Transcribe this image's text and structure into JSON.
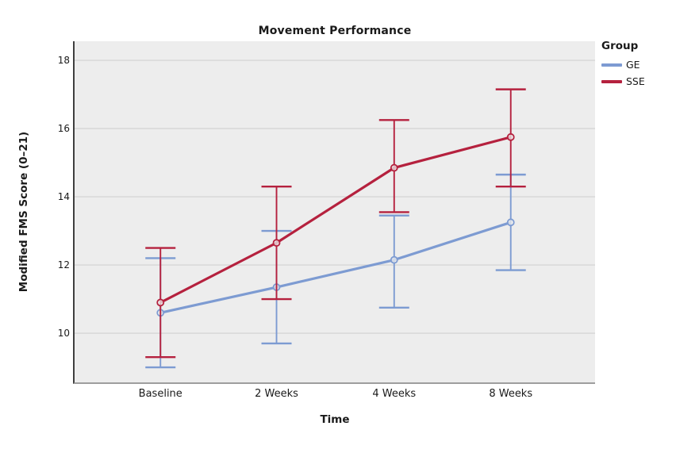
{
  "figure": {
    "background": "#ffffff",
    "plot_background": "#ededed",
    "gridline_color": "#d6d6d6",
    "text_color": "#1a1a1a"
  },
  "chart_data": {
    "type": "line",
    "title": "Movement Performance",
    "xlabel": "Time",
    "ylabel": "Modified FMS Score (0–21)",
    "categories": [
      "Baseline",
      "2 Weeks",
      "4 Weeks",
      "8 Weeks"
    ],
    "series": [
      {
        "name": "GE",
        "color": "#7d9bd2",
        "values": [
          10.6,
          11.35,
          12.15,
          13.25
        ],
        "error_low": [
          9.0,
          9.7,
          10.75,
          11.85
        ],
        "error_high": [
          12.2,
          13.0,
          13.45,
          14.65
        ]
      },
      {
        "name": "SSE",
        "color": "#b5213e",
        "values": [
          10.9,
          12.65,
          14.85,
          15.75
        ],
        "error_low": [
          9.3,
          11.0,
          13.55,
          14.3
        ],
        "error_high": [
          12.5,
          14.3,
          16.25,
          17.15
        ]
      }
    ],
    "yticks": [
      10,
      12,
      14,
      16,
      18
    ],
    "ylim": [
      8.56,
      18.56
    ],
    "grid": "horizontal",
    "marker": "open-circle",
    "legend_title": "Group",
    "legend_position": "right"
  }
}
